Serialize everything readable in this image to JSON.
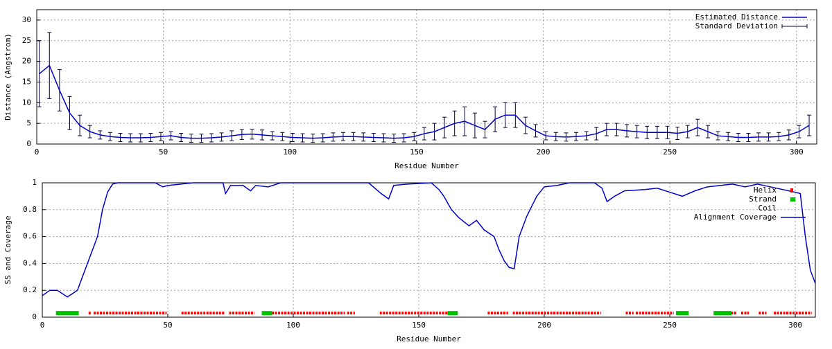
{
  "chart_data": [
    {
      "type": "errorline",
      "xlabel": "Residue Number",
      "ylabel": "Distance (Angstrom)",
      "xlim": [
        0,
        308
      ],
      "ylim": [
        0,
        32.5
      ],
      "xticks": [
        0,
        50,
        100,
        150,
        200,
        250,
        300
      ],
      "yticks": [
        0,
        5,
        10,
        15,
        20,
        25,
        30
      ],
      "grid": true,
      "legend": "upper right",
      "x": [
        1,
        5,
        9,
        13,
        17,
        21,
        25,
        29,
        33,
        37,
        41,
        45,
        49,
        53,
        57,
        61,
        65,
        69,
        73,
        77,
        81,
        85,
        89,
        93,
        97,
        101,
        105,
        109,
        113,
        117,
        121,
        125,
        129,
        133,
        137,
        141,
        145,
        149,
        153,
        157,
        161,
        165,
        169,
        173,
        177,
        181,
        185,
        189,
        193,
        197,
        201,
        205,
        209,
        213,
        217,
        221,
        225,
        229,
        233,
        237,
        241,
        245,
        249,
        253,
        257,
        261,
        265,
        269,
        273,
        277,
        281,
        285,
        289,
        293,
        297,
        301,
        305
      ],
      "series": [
        {
          "name": "Estimated Distance",
          "color": "#0000cc",
          "values": [
            17,
            19,
            13,
            7.5,
            4.5,
            3,
            2.2,
            1.8,
            1.6,
            1.5,
            1.5,
            1.6,
            1.8,
            2,
            1.6,
            1.4,
            1.4,
            1.5,
            1.7,
            2,
            2.3,
            2.4,
            2.2,
            2,
            1.8,
            1.6,
            1.5,
            1.4,
            1.5,
            1.7,
            1.8,
            1.8,
            1.7,
            1.6,
            1.5,
            1.4,
            1.5,
            1.8,
            2.5,
            3,
            4,
            5,
            5.5,
            4.5,
            3.5,
            6,
            7,
            7,
            4.5,
            3.2,
            2,
            1.8,
            1.7,
            1.8,
            2,
            2.5,
            3.5,
            3.5,
            3.2,
            3,
            2.8,
            2.8,
            2.8,
            2.6,
            3,
            4,
            3,
            2,
            1.8,
            1.6,
            1.6,
            1.7,
            1.7,
            1.8,
            2.2,
            3,
            4.5
          ],
          "error_name": "Standard Deviation",
          "errors": [
            8,
            8,
            5,
            4,
            2.5,
            1.5,
            1,
            1,
            1,
            1,
            1,
            1,
            1,
            1,
            1,
            1,
            1,
            1,
            1,
            1.2,
            1.2,
            1.2,
            1.2,
            1,
            1,
            1,
            1,
            1,
            1,
            1,
            1,
            1,
            1,
            1,
            1,
            1,
            1,
            1,
            1.5,
            2,
            2.5,
            3,
            3.5,
            3,
            2,
            3,
            3,
            3,
            2,
            1.5,
            1,
            1,
            1,
            1,
            1,
            1.5,
            1.5,
            1.5,
            1.5,
            1.5,
            1.5,
            1.5,
            1.5,
            1.5,
            1.5,
            2,
            1.5,
            1,
            1,
            1,
            1,
            1,
            1,
            1,
            1.2,
            1.5,
            2.5
          ]
        }
      ]
    },
    {
      "type": "coverage",
      "xlabel": "Residue Number",
      "ylabel": "SS and Coverage",
      "xlim": [
        0,
        308
      ],
      "ylim": [
        0,
        1
      ],
      "xticks": [
        0,
        50,
        100,
        150,
        200,
        250,
        300
      ],
      "yticks": [
        0,
        0.2,
        0.4,
        0.6,
        0.8,
        1
      ],
      "grid": true,
      "legend": "upper right",
      "ss_level": 0.03,
      "ss": [
        {
          "name": "Helix",
          "color": "#ff0000",
          "ranges": [
            [
              19,
              19
            ],
            [
              21,
              49
            ],
            [
              56,
              72
            ],
            [
              75,
              84
            ],
            [
              92,
              120
            ],
            [
              122,
              124
            ],
            [
              135,
              162
            ],
            [
              178,
              185
            ],
            [
              188,
              222
            ],
            [
              233,
              235
            ],
            [
              237,
              251
            ],
            [
              275,
              276
            ],
            [
              279,
              281
            ],
            [
              286,
              288
            ],
            [
              292,
              306
            ]
          ]
        },
        {
          "name": "Strand",
          "color": "#00c000",
          "ranges": [
            [
              6,
              14
            ],
            [
              88,
              91
            ],
            [
              162,
              165
            ],
            [
              253,
              257
            ],
            [
              268,
              274
            ]
          ]
        },
        {
          "name": "Coil",
          "color": "#808080",
          "ranges": []
        }
      ],
      "x": [
        0,
        3,
        6,
        10,
        14,
        16,
        19,
        22,
        24,
        26,
        28,
        30,
        45,
        48,
        50,
        60,
        72,
        73,
        75,
        80,
        83,
        85,
        90,
        95,
        130,
        135,
        138,
        140,
        145,
        155,
        158,
        160,
        163,
        166,
        170,
        173,
        176,
        180,
        182,
        184,
        186,
        188,
        190,
        193,
        197,
        200,
        205,
        210,
        220,
        223,
        225,
        228,
        232,
        240,
        245,
        250,
        255,
        260,
        265,
        270,
        275,
        280,
        285,
        290,
        295,
        300,
        302,
        304,
        306,
        308
      ],
      "series": [
        {
          "name": "Alignment Coverage",
          "color": "#0000cc",
          "values": [
            0.16,
            0.2,
            0.2,
            0.15,
            0.2,
            0.3,
            0.45,
            0.6,
            0.8,
            0.93,
            0.99,
            1,
            1,
            0.97,
            0.98,
            1,
            1,
            0.92,
            0.98,
            0.98,
            0.94,
            0.98,
            0.97,
            1,
            1,
            0.92,
            0.88,
            0.98,
            0.99,
            1,
            0.95,
            0.9,
            0.8,
            0.74,
            0.68,
            0.72,
            0.65,
            0.6,
            0.5,
            0.42,
            0.37,
            0.36,
            0.6,
            0.75,
            0.9,
            0.97,
            0.98,
            1,
            1,
            0.96,
            0.86,
            0.9,
            0.94,
            0.95,
            0.96,
            0.93,
            0.9,
            0.94,
            0.97,
            0.98,
            0.99,
            0.97,
            0.99,
            0.97,
            0.95,
            0.93,
            0.92,
            0.6,
            0.35,
            0.25
          ]
        }
      ]
    }
  ]
}
